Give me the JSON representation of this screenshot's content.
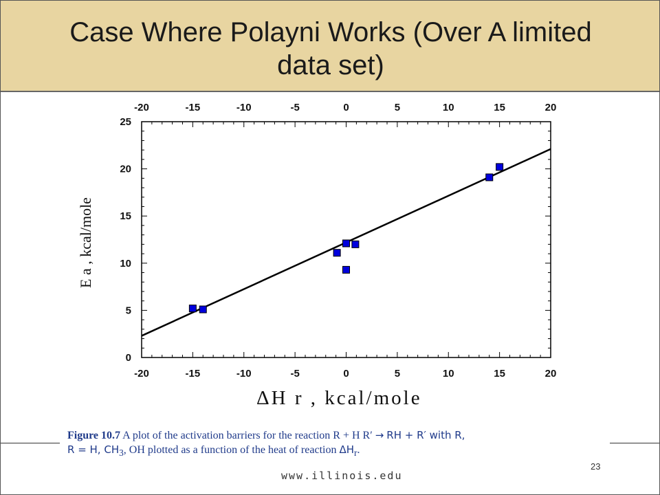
{
  "slide": {
    "title": "Case Where Polayni Works (Over A limited data set)",
    "slide_number": "23",
    "footer_url": "www.illinois.edu",
    "colors": {
      "title_bar": "#e8d5a1",
      "points": "#0000dd",
      "caption": "#1f3a8a"
    }
  },
  "caption": {
    "label": "Figure 10.7",
    "text_part1": "A plot of the activation barriers for the reaction R + H R′",
    "arrow": "→",
    "text_part2": "RH + R′ with R,",
    "text_part3": "R = H, CH",
    "sub_3": "3",
    "text_part4": ", OH plotted as a function of the heat of reaction",
    "delta_h": "ΔH",
    "sub_r": "r",
    "period": "."
  },
  "chart_data": {
    "type": "scatter",
    "xlabel": "ΔH r , kcal/mole",
    "ylabel": "E a , kcal/mole",
    "xlim": [
      -20,
      20
    ],
    "ylim": [
      0,
      25
    ],
    "x_ticks": [
      -20,
      -15,
      -10,
      -5,
      0,
      5,
      10,
      15,
      20
    ],
    "y_ticks": [
      0,
      5,
      10,
      15,
      20,
      25
    ],
    "points": [
      {
        "x": -15,
        "y": 5.2
      },
      {
        "x": -14,
        "y": 5.1
      },
      {
        "x": -0.9,
        "y": 11.1
      },
      {
        "x": 0,
        "y": 12.1
      },
      {
        "x": 0.9,
        "y": 12.0
      },
      {
        "x": 0,
        "y": 9.3
      },
      {
        "x": 14,
        "y": 19.1
      },
      {
        "x": 15,
        "y": 20.2
      }
    ],
    "fit_line": {
      "x": [
        -20,
        20
      ],
      "y": [
        2.3,
        22.1
      ]
    },
    "grid": false
  }
}
